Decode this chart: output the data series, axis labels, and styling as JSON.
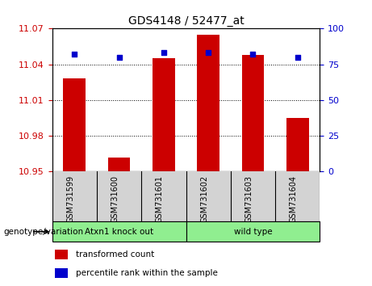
{
  "title": "GDS4148 / 52477_at",
  "samples": [
    "GSM731599",
    "GSM731600",
    "GSM731601",
    "GSM731602",
    "GSM731603",
    "GSM731604"
  ],
  "red_values": [
    11.028,
    10.962,
    11.045,
    11.065,
    11.048,
    10.995
  ],
  "blue_values": [
    82,
    80,
    83,
    83,
    82,
    80
  ],
  "ylim_left": [
    10.95,
    11.07
  ],
  "ylim_right": [
    0,
    100
  ],
  "yticks_left": [
    10.95,
    10.98,
    11.01,
    11.04,
    11.07
  ],
  "yticks_right": [
    0,
    25,
    50,
    75,
    100
  ],
  "ytick_labels_left": [
    "10.95",
    "10.98",
    "11.01",
    "11.04",
    "11.07"
  ],
  "ytick_labels_right": [
    "0",
    "25",
    "50",
    "75",
    "100"
  ],
  "group1_label": "Atxn1 knock out",
  "group2_label": "wild type",
  "group_color": "#90EE90",
  "xtick_bg_color": "#d3d3d3",
  "group_label_text": "genotype/variation",
  "legend_items": [
    {
      "color": "#CC0000",
      "label": "transformed count"
    },
    {
      "color": "#0000CC",
      "label": "percentile rank within the sample"
    }
  ],
  "bar_color": "#CC0000",
  "dot_color": "#0000CC",
  "bar_width": 0.5,
  "tick_color_left": "#CC0000",
  "tick_color_right": "#0000CC",
  "bar_baseline": 10.95
}
